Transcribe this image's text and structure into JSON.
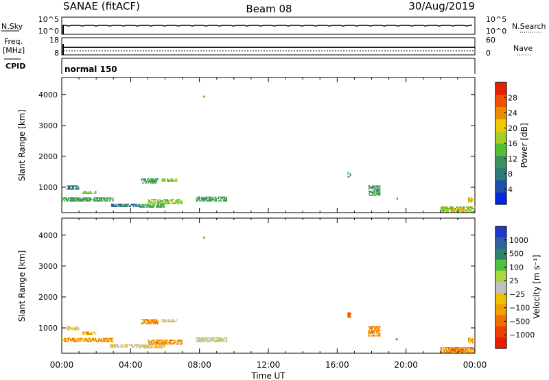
{
  "header": {
    "station": "SANAE (fitACF)",
    "beam": "Beam 08",
    "date": "30/Aug/2019"
  },
  "summary_panels": {
    "nsky": {
      "label": "N.Sky",
      "ticks": [
        "10^5",
        "10^0"
      ],
      "right_ticks": [
        "10^5",
        "10^0"
      ],
      "right_label": "N.Search"
    },
    "freq": {
      "label_top": "Freq.",
      "label_bottom": "[MHz]",
      "ticks": [
        "18",
        "8"
      ],
      "right_ticks": [
        "60",
        "0"
      ],
      "right_label": "Nave"
    },
    "cpid": {
      "label": "CPID",
      "value": "normal 150"
    }
  },
  "colors": {
    "power_scale": [
      "#0028e0",
      "#1e50a8",
      "#2e7a7a",
      "#3c9060",
      "#52c032",
      "#a8d020",
      "#f0c800",
      "#f08c00",
      "#f05000",
      "#e81e00"
    ],
    "velocity_scale": [
      "#2038c8",
      "#3060a0",
      "#2e8070",
      "#50c040",
      "#a8d840",
      "#c0c0c0",
      "#f0c000",
      "#f0a000",
      "#f07000",
      "#f04000",
      "#e81e00"
    ]
  },
  "chart_data": [
    {
      "type": "heatmap",
      "name": "power",
      "xlabel": "",
      "ylabel": "Slant Range [km]",
      "x_tick_labels": [
        "00:00",
        "04:00",
        "08:00",
        "12:00",
        "16:00",
        "20:00",
        "00:00"
      ],
      "x_ticks_hours": [
        0,
        4,
        8,
        12,
        16,
        20,
        24
      ],
      "xlim": [
        0,
        24
      ],
      "ylim": [
        180,
        4550
      ],
      "y_ticks": [
        1000,
        2000,
        3000,
        4000
      ],
      "colorbar": {
        "label": "Power [dB]",
        "ticks": [
          4,
          8,
          12,
          16,
          20,
          24,
          28
        ],
        "range": [
          0,
          32
        ]
      },
      "patches": [
        {
          "t0": 0.0,
          "t1": 3.0,
          "r0": 540,
          "r1": 680,
          "value": 12
        },
        {
          "t0": 0.3,
          "t1": 1.0,
          "r0": 920,
          "r1": 1060,
          "value": 8
        },
        {
          "t0": 1.2,
          "t1": 2.0,
          "r0": 780,
          "r1": 880,
          "value": 16
        },
        {
          "t0": 2.8,
          "t1": 4.5,
          "r0": 360,
          "r1": 470,
          "value": 8
        },
        {
          "t0": 4.5,
          "t1": 6.0,
          "r0": 340,
          "r1": 460,
          "value": 12
        },
        {
          "t0": 5.0,
          "t1": 7.0,
          "r0": 460,
          "r1": 620,
          "value": 16
        },
        {
          "t0": 4.6,
          "t1": 5.6,
          "r0": 1120,
          "r1": 1290,
          "value": 12
        },
        {
          "t0": 5.8,
          "t1": 6.7,
          "r0": 1180,
          "r1": 1280,
          "value": 16
        },
        {
          "t0": 7.8,
          "t1": 9.6,
          "r0": 540,
          "r1": 700,
          "value": 12
        },
        {
          "t0": 8.2,
          "t1": 8.3,
          "r0": 3880,
          "r1": 3960,
          "value": 16
        },
        {
          "t0": 16.6,
          "t1": 16.8,
          "r0": 1320,
          "r1": 1500,
          "value": 12
        },
        {
          "t0": 17.8,
          "t1": 18.5,
          "r0": 720,
          "r1": 1060,
          "value": 12
        },
        {
          "t0": 19.4,
          "t1": 19.5,
          "r0": 600,
          "r1": 660,
          "value": 8
        },
        {
          "t0": 22.0,
          "t1": 24.0,
          "r0": 190,
          "r1": 380,
          "value": 16
        },
        {
          "t0": 22.6,
          "t1": 23.4,
          "r0": 230,
          "r1": 330,
          "value": 22
        },
        {
          "t0": 23.6,
          "t1": 23.9,
          "r0": 500,
          "r1": 680,
          "value": 20
        }
      ]
    },
    {
      "type": "heatmap",
      "name": "velocity",
      "xlabel": "Time UT",
      "ylabel": "Slant Range [km]",
      "x_tick_labels": [
        "00:00",
        "04:00",
        "08:00",
        "12:00",
        "16:00",
        "20:00",
        "00:00"
      ],
      "x_ticks_hours": [
        0,
        4,
        8,
        12,
        16,
        20,
        24
      ],
      "xlim": [
        0,
        24
      ],
      "ylim": [
        180,
        4550
      ],
      "y_ticks": [
        1000,
        2000,
        3000,
        4000
      ],
      "colorbar": {
        "label": "Velocity [m s⁻¹]",
        "ticks": [
          "1000",
          "500",
          "100",
          "25",
          "−25",
          "−100",
          "−500",
          "−1000"
        ]
      },
      "patches": [
        {
          "t0": 0.0,
          "t1": 3.0,
          "r0": 540,
          "r1": 680,
          "value": -100
        },
        {
          "t0": 0.3,
          "t1": 1.0,
          "r0": 920,
          "r1": 1060,
          "value": -25
        },
        {
          "t0": 1.2,
          "t1": 2.0,
          "r0": 780,
          "r1": 880,
          "value": -100
        },
        {
          "t0": 2.8,
          "t1": 4.5,
          "r0": 360,
          "r1": 470,
          "value": -25
        },
        {
          "t0": 4.5,
          "t1": 6.0,
          "r0": 340,
          "r1": 460,
          "value": -25
        },
        {
          "t0": 5.0,
          "t1": 7.0,
          "r0": 460,
          "r1": 620,
          "value": -100
        },
        {
          "t0": 4.6,
          "t1": 5.6,
          "r0": 1120,
          "r1": 1290,
          "value": -100
        },
        {
          "t0": 5.8,
          "t1": 6.7,
          "r0": 1180,
          "r1": 1280,
          "value": -25
        },
        {
          "t0": 7.8,
          "t1": 9.6,
          "r0": 540,
          "r1": 700,
          "value": 25
        },
        {
          "t0": 8.2,
          "t1": 8.3,
          "r0": 3880,
          "r1": 3960,
          "value": 100
        },
        {
          "t0": 16.6,
          "t1": 16.8,
          "r0": 1320,
          "r1": 1500,
          "value": -500
        },
        {
          "t0": 17.8,
          "t1": 18.5,
          "r0": 720,
          "r1": 1060,
          "value": -100
        },
        {
          "t0": 19.4,
          "t1": 19.5,
          "r0": 600,
          "r1": 660,
          "value": -500
        },
        {
          "t0": 22.0,
          "t1": 24.0,
          "r0": 190,
          "r1": 380,
          "value": -100
        },
        {
          "t0": 22.6,
          "t1": 23.4,
          "r0": 230,
          "r1": 330,
          "value": -500
        },
        {
          "t0": 23.6,
          "t1": 23.9,
          "r0": 500,
          "r1": 680,
          "value": -100
        }
      ]
    }
  ]
}
